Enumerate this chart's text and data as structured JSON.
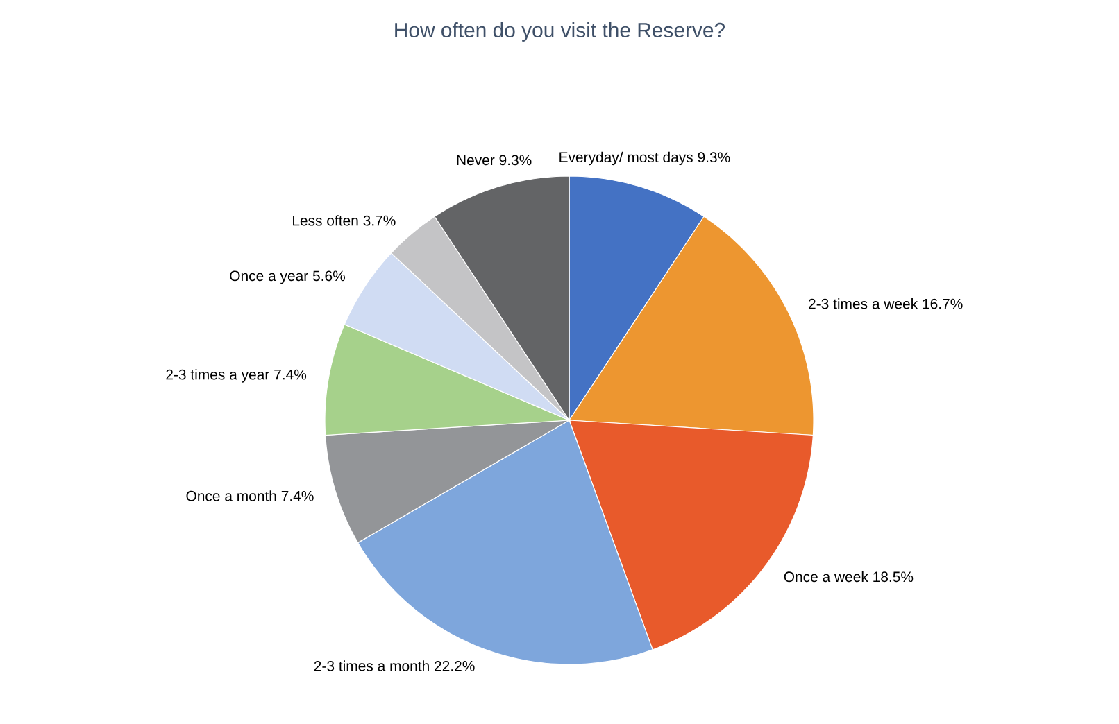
{
  "chart_data": {
    "type": "pie",
    "title": "How often do you visit the Reserve?",
    "categories": [
      "Everyday/ most days",
      "2-3 times a week",
      "Once a week",
      "2-3 times a month",
      "Once a month",
      "2-3 times a year",
      "Once a year",
      "Less often",
      "Never"
    ],
    "values": [
      9.3,
      16.7,
      18.5,
      22.2,
      7.4,
      7.4,
      5.6,
      3.7,
      9.3
    ],
    "value_labels": [
      "9.3%",
      "16.7%",
      "18.5%",
      "22.2%",
      "7.4%",
      "7.4%",
      "5.6%",
      "3.7%",
      "9.3%"
    ],
    "colors": [
      "#4472c4",
      "#ed9630",
      "#e85a2b",
      "#7ea6dc",
      "#939598",
      "#a6d18b",
      "#d0dcf3",
      "#c4c4c6",
      "#636466"
    ]
  }
}
